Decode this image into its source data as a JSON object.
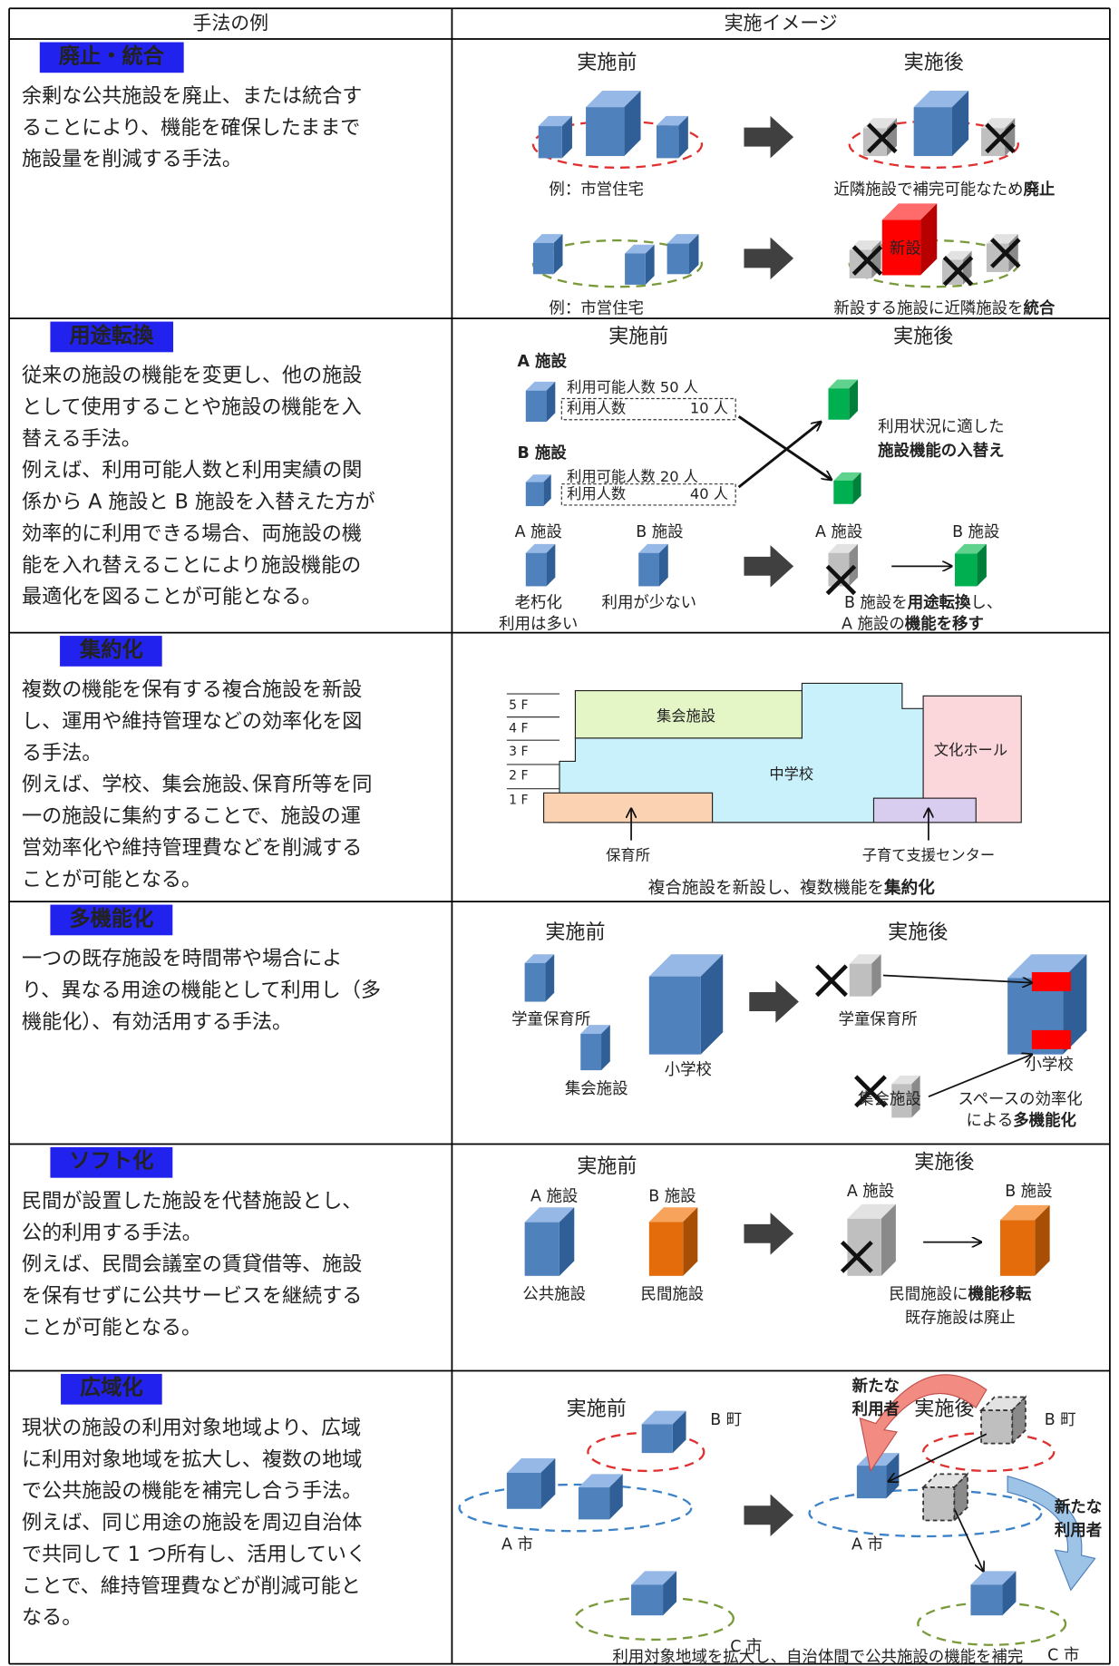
{
  "table": {
    "headers": [
      "手法の例",
      "実施イメージ"
    ],
    "rows": [
      {
        "method": "廃止・統合",
        "description": [
          "余剰な公共施設を廃止、または統合す",
          "ることにより、機能を確保したままで",
          "施設量を削減する手法。"
        ],
        "before": "実施前",
        "after": "実施後",
        "note1": "例：市営住宅",
        "result1": [
          "近隣施設で補完可能なため",
          "廃止"
        ],
        "note2": "例：市営住宅",
        "new": "新設",
        "result2": [
          "新設する施設に近隣施設を",
          "統合"
        ]
      },
      {
        "method": "用途転換",
        "description": [
          "従来の施設の機能を変更し、他の施設",
          "として使用することや施設の機能を入",
          "替える手法。",
          "例えば、利用可能人数と利用実績の関",
          "係から A 施設と B 施設を入替えた方が",
          "効率的に利用できる場合、両施設の機",
          "能を入れ替えることにより施設機能の",
          "最適化を図ることが可能となる。"
        ],
        "before": "実施前",
        "after": "実施後",
        "facility_a": "A 施設",
        "capacity_a": "利用可能人数 50 人",
        "usage_a": {
          "label": "利用人数",
          "value": "10 人"
        },
        "facility_b": "B 施設",
        "capacity_b": "利用可能人数 20 人",
        "usage_b": {
          "label": "利用人数",
          "value": "40 人"
        },
        "swap_note": [
          "利用状況に適した",
          "施設機能の入替え"
        ],
        "bottom_a": "A 施設",
        "bottom_b": "B 施設",
        "status_a": [
          "老朽化",
          "利用は多い"
        ],
        "status_b": "利用が少ない",
        "after_a": "A 施設",
        "after_b": "B 施設",
        "result1": [
          "B 施設を",
          "用途転換",
          "し、"
        ],
        "result2": [
          "A 施設の",
          "機能を移す"
        ]
      },
      {
        "method": "集約化",
        "description": [
          "複数の機能を保有する複合施設を新設",
          "し、運用や維持管理などの効率化を図",
          "る手法。",
          "例えば、学校、集会施設､保育所等を同",
          "一の施設に集約することで、施設の運",
          "営効率化や維持管理費などを削減する",
          "ことが可能となる。"
        ],
        "floors": [
          "5 F",
          "4 F",
          "3 F",
          "2 F",
          "1 F"
        ],
        "assembly": "集会施設",
        "school": "中学校",
        "hall": "文化ホール",
        "nursery": "保育所",
        "childcare": "子育て支援センター",
        "caption": [
          "複合施設を新設し、複数機能を",
          "集約化"
        ]
      },
      {
        "method": "多機能化",
        "description": [
          "一つの既存施設を時間帯や場合によ",
          "り、異なる用途の機能として利用し（多",
          "機能化）、有効活用する手法。"
        ],
        "before": "実施前",
        "after": "実施後",
        "before_labels": [
          "学童保育所",
          "小学校",
          "集会施設"
        ],
        "after_labels": [
          "学童保育所",
          "小学校",
          "集会施設"
        ],
        "result1": "スペースの効率化",
        "result2": [
          "による",
          "多機能化"
        ]
      },
      {
        "method": "ソフト化",
        "description": [
          "民間が設置した施設を代替施設とし、",
          "公的利用する手法。",
          "例えば、民間会議室の賃貸借等、施設",
          "を保有せずに公共サービスを継続する",
          "ことが可能となる。"
        ],
        "before": "実施前",
        "after": "実施後",
        "before_a": "A 施設",
        "before_b": "B 施設",
        "public": "公共施設",
        "private": "民間施設",
        "after_a": "A 施設",
        "after_b": "B 施設",
        "result": [
          "民間施設に",
          "機能移転"
        ],
        "abolish": "既存施設は廃止"
      },
      {
        "method": "広域化",
        "description": [
          "現状の施設の利用対象地域より、広域",
          "に利用対象地域を拡大し、複数の地域",
          "で公共施設の機能を補完し合う手法。",
          "例えば、同じ用途の施設を周辺自治体",
          "で共同して 1 つ所有し、活用していく",
          "ことで、維持管理費などが削減可能と",
          "なる。"
        ],
        "before": "実施前",
        "after": "実施後",
        "before_regions": [
          "B 町",
          "A 市",
          "C 市"
        ],
        "after_regions": [
          "B 町",
          "A 市",
          "C 市"
        ],
        "new_users_1": [
          "新たな",
          "利用者"
        ],
        "new_users_2": [
          "新たな",
          "利用者"
        ],
        "caption": "利用対象地域を拡大し、自治体間で公共施設の機能を補完"
      }
    ]
  }
}
